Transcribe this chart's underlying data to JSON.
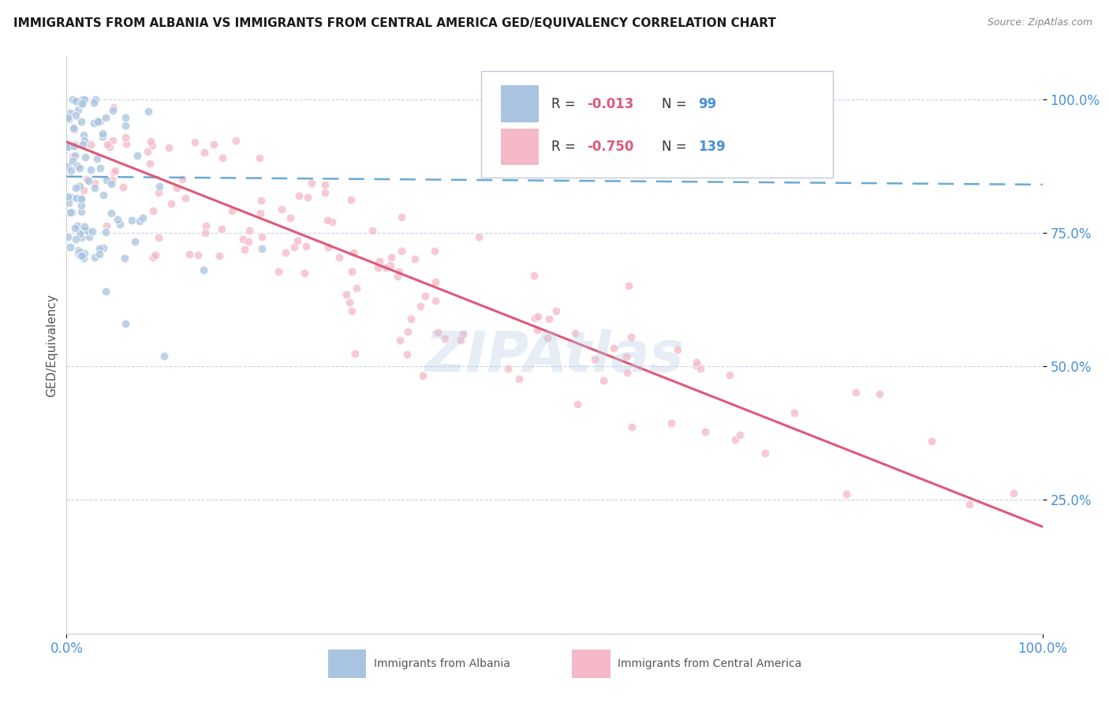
{
  "title": "IMMIGRANTS FROM ALBANIA VS IMMIGRANTS FROM CENTRAL AMERICA GED/EQUIVALENCY CORRELATION CHART",
  "source": "Source: ZipAtlas.com",
  "ylabel": "GED/Equivalency",
  "bg_color": "#ffffff",
  "grid_color": "#c8d4e8",
  "grid_style": "--",
  "title_color": "#1a1a1a",
  "axis_tick_color": "#4a90d9",
  "albania_scatter_color": "#a8c4e0",
  "central_scatter_color": "#f4b8c8",
  "albania_line_color": "#6aaad4",
  "central_line_color": "#e05878",
  "legend_R_color": "#e05878",
  "legend_N_color": "#4a90d9",
  "watermark_color": "#b8cce0",
  "watermark_alpha": 0.35,
  "scatter_size": 60,
  "scatter_alpha": 0.75,
  "scatter_linewidth": 0.8,
  "scatter_edgecolor": "#ffffff",
  "albania_trend_x0": 0.0,
  "albania_trend_x1": 1.0,
  "albania_trend_y0": 0.855,
  "albania_trend_y1": 0.84,
  "central_trend_x0": 0.0,
  "central_trend_x1": 1.0,
  "central_trend_y0": 0.92,
  "central_trend_y1": 0.2,
  "xlim": [
    0.0,
    1.0
  ],
  "ylim": [
    0.0,
    1.08
  ],
  "yticks": [
    0.25,
    0.5,
    0.75,
    1.0
  ],
  "ytick_labels": [
    "25.0%",
    "50.0%",
    "75.0%",
    "100.0%"
  ],
  "xticks": [
    0.0,
    1.0
  ],
  "xtick_labels": [
    "0.0%",
    "100.0%"
  ],
  "R_albania": -0.013,
  "N_albania": 99,
  "R_central": -0.75,
  "N_central": 139,
  "label_albania": "Immigrants from Albania",
  "label_central": "Immigrants from Central America"
}
